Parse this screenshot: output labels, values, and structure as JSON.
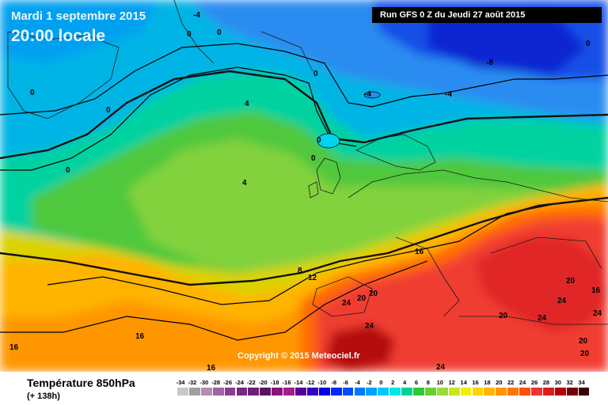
{
  "title": {
    "date": "Mardi 1 septembre 2015",
    "time": "20:00 locale"
  },
  "run_info": "Run GFS 0 Z du Jeudi 27 août 2015",
  "copyright": "Copyright © 2015 Meteociel.fr",
  "variable": {
    "name": "Température 850hPa",
    "lead": "(+ 138h)"
  },
  "map_labels": [
    {
      "text": "-4"
    },
    {
      "text": "0"
    },
    {
      "text": "0"
    },
    {
      "text": "0"
    },
    {
      "text": "0"
    },
    {
      "text": "0"
    },
    {
      "text": "0"
    },
    {
      "text": "0"
    },
    {
      "text": "0"
    },
    {
      "text": "-8"
    },
    {
      "text": "-4"
    },
    {
      "text": "-4"
    },
    {
      "text": "4"
    },
    {
      "text": "4"
    },
    {
      "text": "8"
    },
    {
      "text": "12"
    },
    {
      "text": "16"
    },
    {
      "text": "16"
    },
    {
      "text": "16"
    },
    {
      "text": "16"
    },
    {
      "text": "20"
    },
    {
      "text": "20"
    },
    {
      "text": "20"
    },
    {
      "text": "20"
    },
    {
      "text": "24"
    },
    {
      "text": "24"
    },
    {
      "text": "24"
    },
    {
      "text": "24"
    },
    {
      "text": "24"
    },
    {
      "text": "20"
    },
    {
      "text": "20"
    },
    {
      "text": "24"
    },
    {
      "text": "16"
    },
    {
      "text": "0"
    }
  ],
  "legend": {
    "values": [
      "-34",
      "-32",
      "-30",
      "-28",
      "-26",
      "-24",
      "-22",
      "-20",
      "-18",
      "-16",
      "-14",
      "-12",
      "-10",
      "-8",
      "-6",
      "-4",
      "-2",
      "0",
      "2",
      "4",
      "6",
      "8",
      "10",
      "12",
      "14",
      "16",
      "18",
      "20",
      "22",
      "24",
      "26",
      "28",
      "30",
      "32",
      "34"
    ],
    "colors": [
      "#c8c8c8",
      "#a0a0a0",
      "#b48cb4",
      "#a064a0",
      "#8c3c8c",
      "#78287d",
      "#6e1e78",
      "#5a1464",
      "#8c1478",
      "#a01e8c",
      "#5a0096",
      "#3200c8",
      "#0000e6",
      "#0028ff",
      "#0050ff",
      "#0078ff",
      "#00a0ff",
      "#00c8ff",
      "#00e6e6",
      "#00d296",
      "#32c832",
      "#64d232",
      "#96dc32",
      "#c8e61e",
      "#f0f000",
      "#ffd200",
      "#ffb400",
      "#ff9600",
      "#ff7800",
      "#ff5000",
      "#f03232",
      "#dc1e1e",
      "#b40000",
      "#780000",
      "#3c0000"
    ]
  }
}
